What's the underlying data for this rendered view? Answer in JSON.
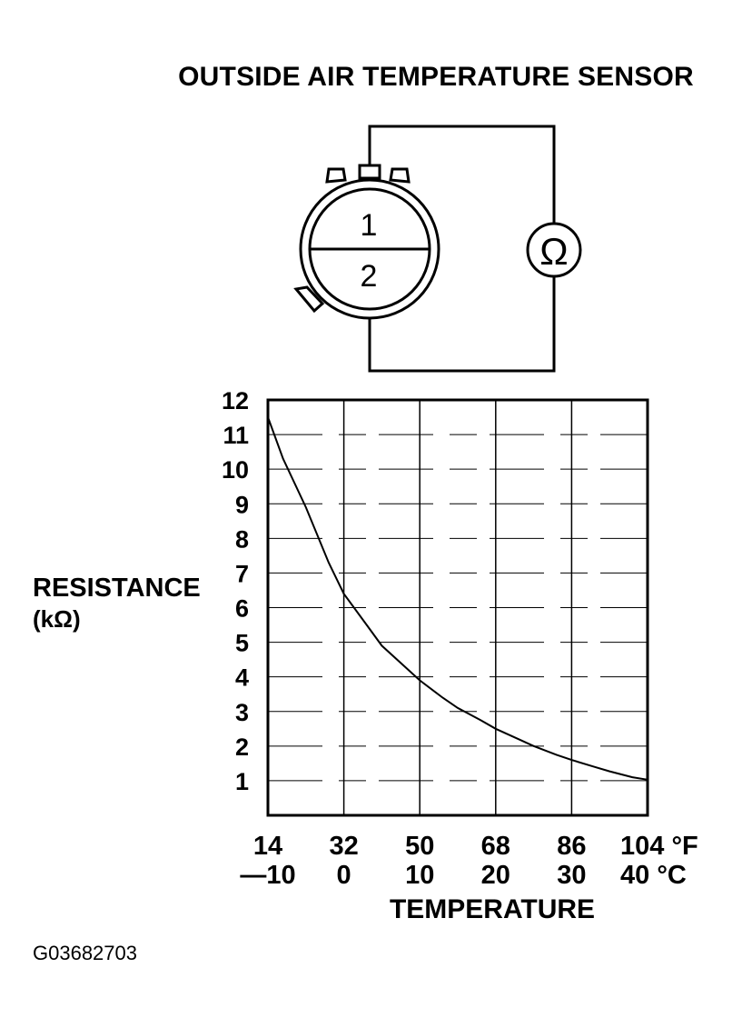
{
  "page": {
    "title": "OUTSIDE AIR TEMPERATURE SENSOR",
    "figure_code": "G03682703"
  },
  "diagram": {
    "terminal_1": "1",
    "terminal_2": "2",
    "ohmmeter_symbol": "Ω",
    "icons": [
      "connector-icon",
      "ohmmeter-icon"
    ]
  },
  "chart_data": {
    "type": "line",
    "title": "",
    "ylabel": "RESISTANCE",
    "yunit": "(kΩ)",
    "xlabel": "TEMPERATURE",
    "ylim": [
      0,
      12
    ],
    "yticks": [
      "1",
      "2",
      "3",
      "4",
      "5",
      "6",
      "7",
      "8",
      "9",
      "10",
      "11",
      "12"
    ],
    "xlim_c": [
      -10,
      40
    ],
    "xticks_f": [
      "14",
      "32",
      "50",
      "68",
      "86",
      "104 °F"
    ],
    "xticks_c": [
      "—10",
      "0",
      "10",
      "20",
      "30",
      "40 °C"
    ],
    "grid": true,
    "series": [
      {
        "x_c": [
          -10,
          -8,
          -5,
          -2,
          0,
          3,
          5,
          8,
          10,
          13,
          15,
          18,
          20,
          23,
          25,
          28,
          30,
          33,
          35,
          38,
          40
        ],
        "y_kohm": [
          11.5,
          10.3,
          8.9,
          7.3,
          6.4,
          5.5,
          4.9,
          4.3,
          3.9,
          3.4,
          3.1,
          2.75,
          2.5,
          2.2,
          2.0,
          1.75,
          1.6,
          1.4,
          1.27,
          1.1,
          1.03
        ]
      }
    ]
  }
}
